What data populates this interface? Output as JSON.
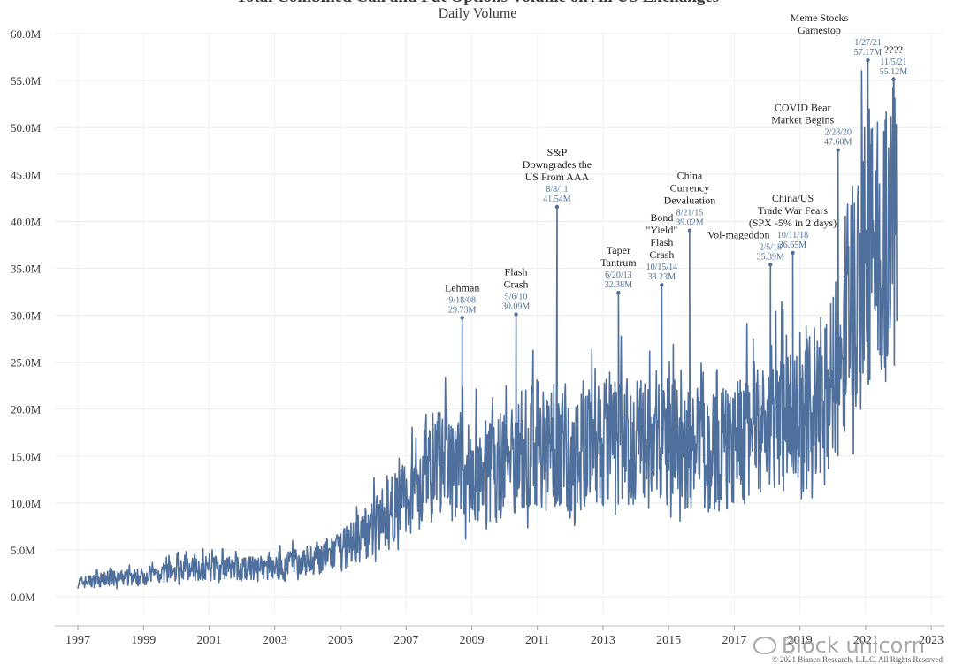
{
  "chart_data": {
    "type": "line",
    "title": "Total Combined Call and Put Options Volume on All US Exchanges",
    "subtitle": "Daily Volume",
    "ylim": [
      0,
      60
    ],
    "yunit": "M",
    "yticks": [
      "0.0M",
      "5.0M",
      "10.0M",
      "15.0M",
      "20.0M",
      "25.0M",
      "30.0M",
      "35.0M",
      "40.0M",
      "45.0M",
      "50.0M",
      "55.0M",
      "60.0M"
    ],
    "ytick_values": [
      0,
      5,
      10,
      15,
      20,
      25,
      30,
      35,
      40,
      45,
      50,
      55,
      60
    ],
    "xlim": [
      1996.3,
      2023.4
    ],
    "xticks": [
      "1997",
      "1999",
      "2001",
      "2003",
      "2005",
      "2007",
      "2009",
      "2011",
      "2013",
      "2015",
      "2017",
      "2019",
      "2021",
      "2023"
    ],
    "xtick_values": [
      1997,
      1999,
      2001,
      2003,
      2005,
      2007,
      2009,
      2011,
      2013,
      2015,
      2017,
      2019,
      2021,
      2023
    ],
    "series": [
      {
        "name": "Daily Volume",
        "color": "#4f6f9d",
        "trend": [
          [
            1997.0,
            1.5
          ],
          [
            1998.0,
            1.9
          ],
          [
            1999.0,
            2.2
          ],
          [
            2000.0,
            2.8
          ],
          [
            2001.0,
            3.1
          ],
          [
            2002.0,
            3.0
          ],
          [
            2003.0,
            3.1
          ],
          [
            2004.0,
            3.9
          ],
          [
            2005.0,
            4.8
          ],
          [
            2006.0,
            7.5
          ],
          [
            2007.0,
            10.5
          ],
          [
            2008.0,
            14.5
          ],
          [
            2009.0,
            13.0
          ],
          [
            2010.0,
            14.5
          ],
          [
            2011.0,
            16.5
          ],
          [
            2012.0,
            15.5
          ],
          [
            2013.0,
            16.5
          ],
          [
            2014.0,
            16.5
          ],
          [
            2015.0,
            16.5
          ],
          [
            2016.0,
            15.5
          ],
          [
            2017.0,
            16.0
          ],
          [
            2018.0,
            19.0
          ],
          [
            2019.0,
            18.5
          ],
          [
            2020.0,
            23.5
          ],
          [
            2021.0,
            37.0
          ],
          [
            2021.7,
            38.0
          ],
          [
            2021.9,
            40.0
          ]
        ],
        "peaks": [
          {
            "x": 2008.71,
            "y": 29.73,
            "date": "9/18/08",
            "value": "29.73M"
          },
          {
            "x": 2010.35,
            "y": 30.09,
            "date": "5/6/10",
            "value": "30.09M"
          },
          {
            "x": 2011.6,
            "y": 41.54,
            "date": "8/8/11",
            "value": "41.54M"
          },
          {
            "x": 2013.47,
            "y": 32.38,
            "date": "6/20/13",
            "value": "32.38M"
          },
          {
            "x": 2014.79,
            "y": 33.23,
            "date": "10/15/14",
            "value": "33.23M"
          },
          {
            "x": 2015.64,
            "y": 39.02,
            "date": "8/21/15",
            "value": "39.02M"
          },
          {
            "x": 2018.1,
            "y": 35.39,
            "date": "2/5/18",
            "value": "35.39M"
          },
          {
            "x": 2018.78,
            "y": 36.65,
            "date": "10/11/18",
            "value": "36.65M"
          },
          {
            "x": 2020.16,
            "y": 47.6,
            "date": "2/28/20",
            "value": "47.60M"
          },
          {
            "x": 2021.07,
            "y": 57.17,
            "date": "1/27/21",
            "value": "57.17M"
          },
          {
            "x": 2021.85,
            "y": 55.12,
            "date": "11/5/21",
            "value": "55.12M"
          }
        ]
      }
    ],
    "annotations": [
      {
        "x": 2008.71,
        "lines": [
          "Lehman"
        ]
      },
      {
        "x": 2010.35,
        "lines": [
          "Flash",
          "Crash"
        ]
      },
      {
        "x": 2011.6,
        "lines": [
          "S&P",
          "Downgrades the",
          "US From AAA"
        ]
      },
      {
        "x": 2013.47,
        "lines": [
          "Taper",
          "Tantrum"
        ]
      },
      {
        "x": 2014.79,
        "lines": [
          "Bond",
          "\"Yield\"",
          "Flash",
          "Crash"
        ]
      },
      {
        "x": 2015.64,
        "lines": [
          "China",
          "Currency",
          "Devaluation"
        ]
      },
      {
        "x": 2018.1,
        "lines": [
          "Vol-mageddon"
        ]
      },
      {
        "x": 2018.78,
        "lines": [
          "China/US",
          "Trade War Fears",
          "(SPX -5% in 2 days)"
        ]
      },
      {
        "x": 2020.16,
        "lines": [
          "COVID Bear",
          "Market Begins"
        ]
      },
      {
        "x": 2021.07,
        "lines": [
          "Meme Stocks",
          "Gamestop"
        ]
      },
      {
        "x": 2021.85,
        "lines": [
          "????"
        ]
      }
    ]
  },
  "watermark": "Block unicorn",
  "copyright": "© 2021 Bianco Research, L.L.C. All Rights Reserved"
}
